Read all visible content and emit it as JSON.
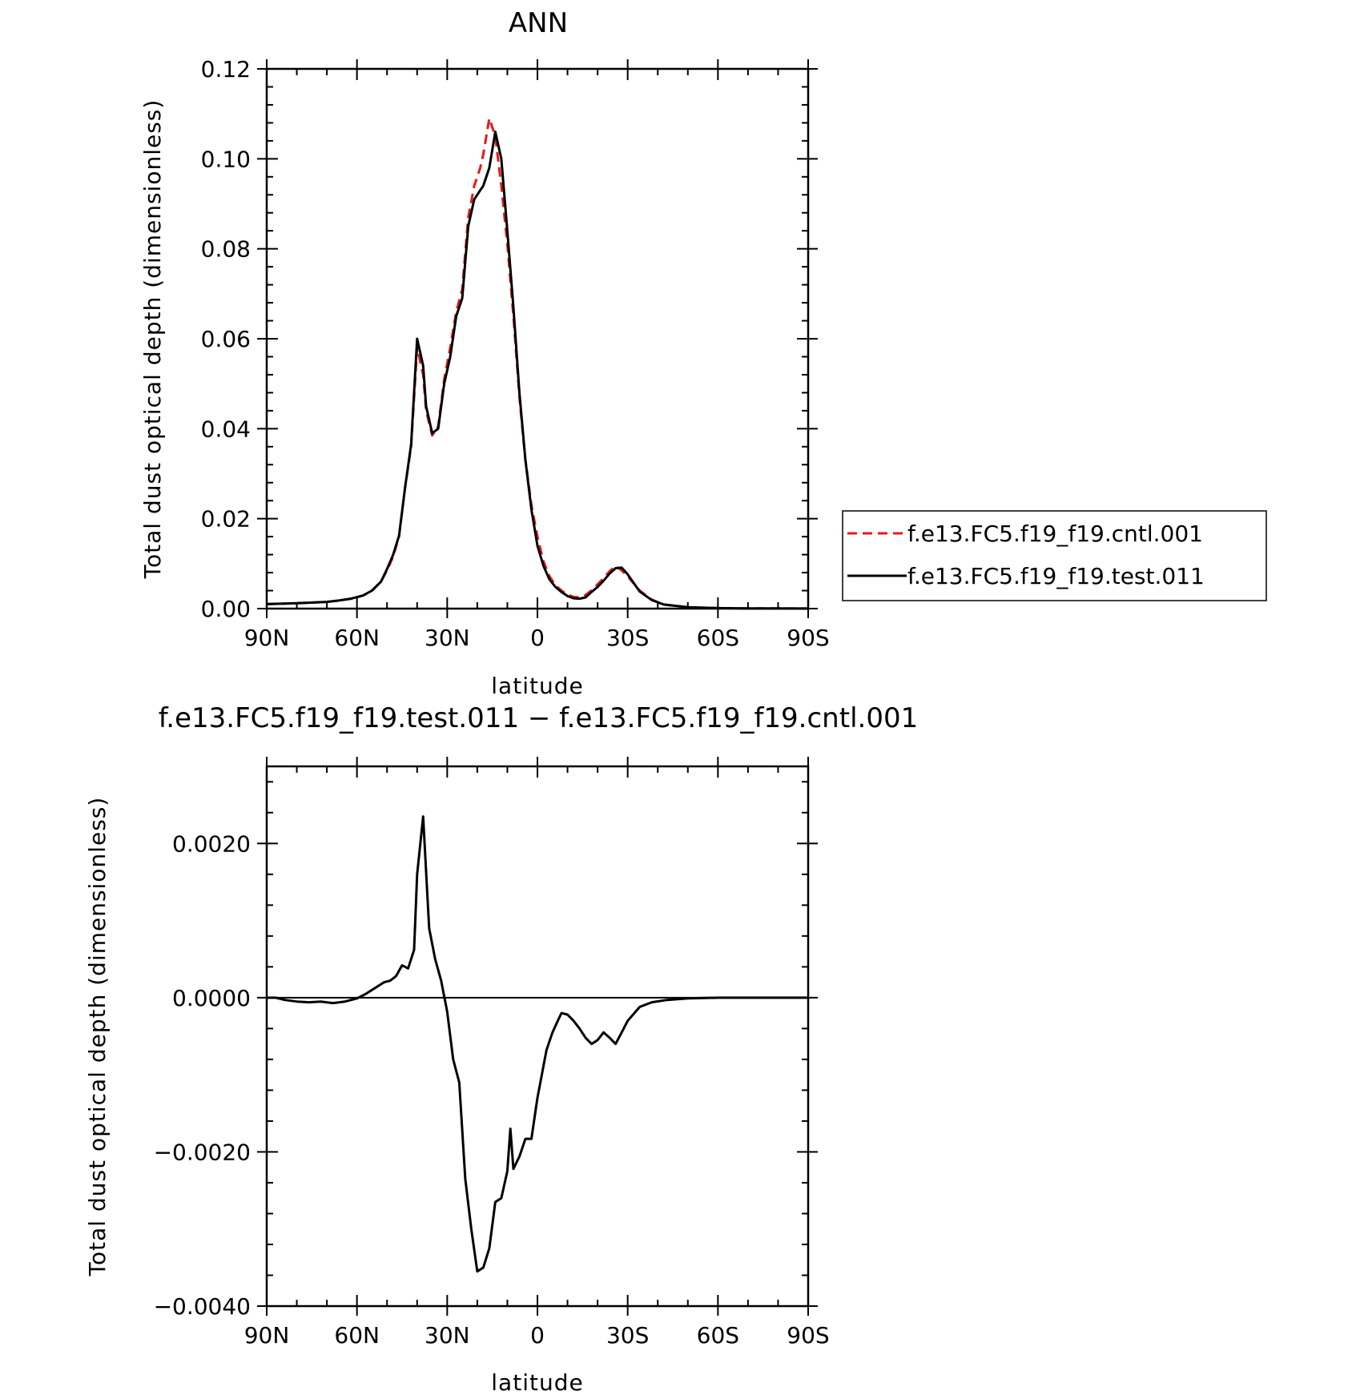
{
  "colors": {
    "cntl": "#e41a1c",
    "test": "#000000",
    "axis": "#000000"
  },
  "chart_data": [
    {
      "type": "line",
      "title": "ANN",
      "xlabel": "latitude",
      "ylabel": "Total dust optical depth (dimensionless)",
      "xlim": [
        90,
        -90
      ],
      "ylim": [
        0,
        0.12
      ],
      "xticks": [
        {
          "value": 90,
          "label": "90N"
        },
        {
          "value": 60,
          "label": "60N"
        },
        {
          "value": 30,
          "label": "30N"
        },
        {
          "value": 0,
          "label": "0"
        },
        {
          "value": -30,
          "label": "30S"
        },
        {
          "value": -60,
          "label": "60S"
        },
        {
          "value": -90,
          "label": "90S"
        }
      ],
      "yticks": [
        {
          "value": 0,
          "label": "0.00"
        },
        {
          "value": 0.02,
          "label": "0.02"
        },
        {
          "value": 0.04,
          "label": "0.04"
        },
        {
          "value": 0.06,
          "label": "0.06"
        },
        {
          "value": 0.08,
          "label": "0.08"
        },
        {
          "value": 0.1,
          "label": "0.10"
        },
        {
          "value": 0.12,
          "label": "0.12"
        }
      ],
      "legend": "right",
      "series": [
        {
          "name": "f.e13.FC5.f19_f19.cntl.001",
          "style": "dashed",
          "color_key": "cntl",
          "x": [
            90,
            80,
            70,
            66,
            62,
            58,
            55,
            52,
            50,
            48,
            46,
            44,
            42,
            40,
            38,
            37,
            35,
            33,
            31,
            29,
            27,
            25,
            23,
            21,
            19,
            18,
            16,
            14,
            12,
            10,
            8,
            6,
            4,
            2,
            0,
            -2,
            -4,
            -6,
            -8,
            -10,
            -12,
            -14,
            -16,
            -18,
            -20,
            -22,
            -24,
            -26,
            -28,
            -30,
            -34,
            -38,
            -42,
            -50,
            -60,
            -70,
            -80,
            -90
          ],
          "y": [
            0.001,
            0.0012,
            0.0015,
            0.0018,
            0.0022,
            0.0029,
            0.004,
            0.006,
            0.0085,
            0.0115,
            0.016,
            0.027,
            0.036,
            0.058,
            0.052,
            0.044,
            0.0385,
            0.0405,
            0.051,
            0.058,
            0.066,
            0.071,
            0.087,
            0.094,
            0.098,
            0.101,
            0.109,
            0.105,
            0.094,
            0.081,
            0.065,
            0.047,
            0.033,
            0.023,
            0.016,
            0.0105,
            0.0072,
            0.0052,
            0.004,
            0.0031,
            0.0026,
            0.0025,
            0.003,
            0.0041,
            0.0054,
            0.0068,
            0.0083,
            0.0095,
            0.0085,
            0.0072,
            0.004,
            0.002,
            0.0009,
            0.0003,
            0.0001,
            5e-05,
            3e-05,
            2e-05
          ]
        },
        {
          "name": "f.e13.FC5.f19_f19.test.011",
          "style": "solid",
          "color_key": "test",
          "x": [
            90,
            80,
            70,
            66,
            62,
            58,
            55,
            52,
            50,
            48,
            46,
            44,
            42,
            40,
            38,
            37,
            35,
            33,
            31,
            29,
            27,
            25,
            23,
            21,
            19,
            18,
            16,
            14,
            12,
            10,
            8,
            6,
            4,
            2,
            0,
            -2,
            -4,
            -6,
            -8,
            -10,
            -12,
            -14,
            -16,
            -18,
            -20,
            -22,
            -24,
            -26,
            -28,
            -30,
            -34,
            -38,
            -42,
            -50,
            -60,
            -70,
            -80,
            -90
          ],
          "y": [
            0.001,
            0.0012,
            0.0015,
            0.0018,
            0.0022,
            0.0029,
            0.004,
            0.006,
            0.0088,
            0.0119,
            0.0162,
            0.027,
            0.0365,
            0.06,
            0.054,
            0.045,
            0.039,
            0.04,
            0.05,
            0.056,
            0.065,
            0.069,
            0.085,
            0.091,
            0.093,
            0.094,
            0.098,
            0.106,
            0.1,
            0.084,
            0.067,
            0.048,
            0.033,
            0.022,
            0.014,
            0.0095,
            0.0065,
            0.0048,
            0.0037,
            0.0028,
            0.0023,
            0.0022,
            0.0025,
            0.0037,
            0.0048,
            0.0062,
            0.0078,
            0.009,
            0.0091,
            0.0076,
            0.0038,
            0.0019,
            0.0009,
            0.0003,
            0.0001,
            5e-05,
            3e-05,
            2e-05
          ]
        }
      ]
    },
    {
      "type": "line",
      "title": "f.e13.FC5.f19_f19.test.011 − f.e13.FC5.f19_f19.cntl.001",
      "xlabel": "latitude",
      "ylabel": "Total dust optical depth (dimensionless)",
      "xlim": [
        90,
        -90
      ],
      "ylim": [
        -0.004,
        0.003
      ],
      "xticks": [
        {
          "value": 90,
          "label": "90N"
        },
        {
          "value": 60,
          "label": "60N"
        },
        {
          "value": 30,
          "label": "30N"
        },
        {
          "value": 0,
          "label": "0"
        },
        {
          "value": -30,
          "label": "30S"
        },
        {
          "value": -60,
          "label": "60S"
        },
        {
          "value": -90,
          "label": "90S"
        }
      ],
      "yticks": [
        {
          "value": -0.004,
          "label": "−0.0040"
        },
        {
          "value": -0.002,
          "label": "−0.0020"
        },
        {
          "value": 0.0,
          "label": "0.0000"
        },
        {
          "value": 0.002,
          "label": "0.0020"
        }
      ],
      "series": [
        {
          "style": "solid",
          "color_key": "test",
          "x": [
            90,
            87,
            84,
            80,
            76,
            72,
            68,
            64,
            60,
            57,
            55,
            53,
            51,
            49,
            47,
            45,
            43,
            41,
            40,
            38,
            36,
            34,
            32,
            30,
            28,
            26,
            24,
            22,
            20,
            18,
            16,
            14,
            12,
            10,
            9,
            8,
            6,
            4,
            2,
            0,
            -3,
            -5,
            -7,
            -8,
            -10,
            -12,
            -14,
            -16,
            -18,
            -20,
            -22,
            -24,
            -26,
            -28,
            -30,
            -34,
            -38,
            -43,
            -50,
            -60,
            -70,
            -80,
            -90
          ],
          "y": [
            0.0,
            0.0,
            -3e-05,
            -5e-05,
            -6e-05,
            -5e-05,
            -7e-05,
            -5e-05,
            -1e-05,
            5e-05,
            0.0001,
            0.00015,
            0.0002,
            0.00022,
            0.00028,
            0.00042,
            0.00038,
            0.00062,
            0.0016,
            0.00235,
            0.0009,
            0.0005,
            0.00022,
            -0.00018,
            -0.0008,
            -0.0011,
            -0.00235,
            -0.003,
            -0.00355,
            -0.0035,
            -0.00325,
            -0.00265,
            -0.0026,
            -0.00225,
            -0.0017,
            -0.00222,
            -0.00206,
            -0.00183,
            -0.00183,
            -0.0013,
            -0.00068,
            -0.00045,
            -0.00028,
            -0.0002,
            -0.00022,
            -0.0003,
            -0.0004,
            -0.00052,
            -0.0006,
            -0.00055,
            -0.00045,
            -0.00052,
            -0.0006,
            -0.00045,
            -0.0003,
            -0.00012,
            -6e-05,
            -3e-05,
            -1e-05,
            0.0,
            0.0,
            0.0,
            0.0
          ]
        }
      ]
    }
  ]
}
